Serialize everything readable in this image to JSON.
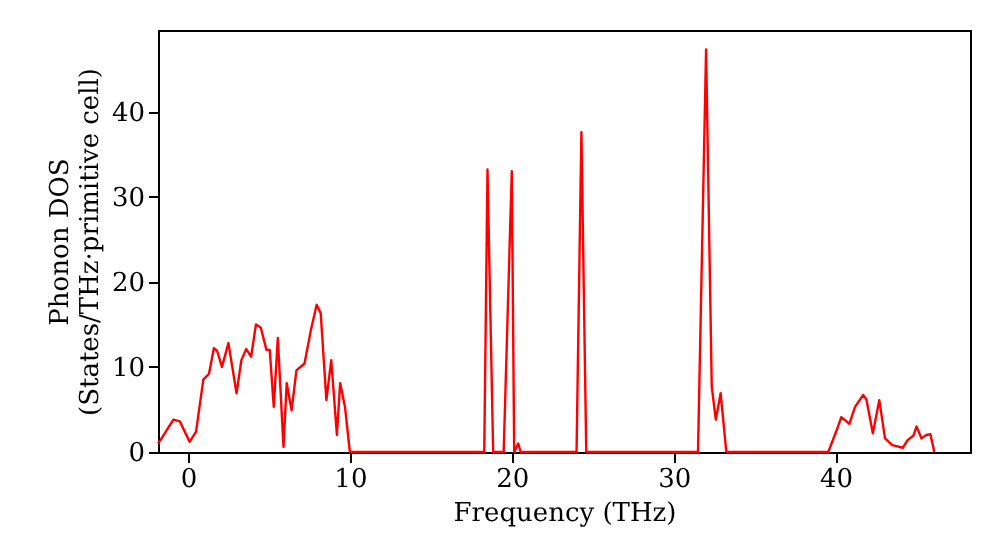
{
  "chart_data": {
    "type": "line",
    "xlabel": "Frequency (THz)",
    "ylabel": "Phonon DOS\n(States/THz·primitive cell)",
    "xlim": [
      -1.85,
      48.3
    ],
    "ylim": [
      0,
      49.6
    ],
    "xticks": [
      0,
      10,
      20,
      30,
      40
    ],
    "yticks": [
      0,
      10,
      20,
      30,
      40
    ],
    "grid": false,
    "marker": "none",
    "line_style": "solid",
    "series": [
      {
        "color": "#ff0000",
        "x": [
          -1.85,
          -1.7,
          -0.9,
          -0.5,
          0.1,
          0.5,
          0.95,
          1.3,
          1.6,
          1.8,
          2.1,
          2.5,
          3.0,
          3.3,
          3.6,
          3.9,
          4.2,
          4.5,
          4.85,
          5.05,
          5.3,
          5.55,
          5.9,
          6.1,
          6.4,
          6.7,
          7.2,
          7.6,
          7.95,
          8.2,
          8.55,
          8.85,
          9.2,
          9.4,
          9.7,
          10.0,
          18.3,
          18.5,
          18.85,
          19.5,
          20.0,
          20.15,
          20.4,
          20.55,
          24.0,
          24.3,
          24.6,
          31.5,
          32.0,
          32.35,
          32.6,
          32.9,
          33.25,
          39.55,
          40.15,
          40.35,
          40.85,
          41.2,
          41.7,
          41.9,
          42.3,
          42.7,
          43.05,
          43.5,
          44.15,
          44.45,
          44.8,
          45.0,
          45.3,
          45.6,
          45.85,
          46.1
        ],
        "values": [
          1.0,
          1.4,
          3.8,
          3.6,
          1.2,
          2.4,
          8.5,
          9.2,
          12.2,
          11.9,
          10.0,
          12.8,
          6.9,
          10.8,
          12.1,
          11.2,
          15.0,
          14.6,
          12.0,
          12.0,
          5.3,
          13.4,
          0.6,
          8.1,
          4.9,
          9.6,
          10.4,
          14.4,
          17.3,
          16.3,
          6.1,
          10.8,
          2.0,
          8.1,
          5.3,
          0,
          0,
          33.2,
          0,
          0,
          33,
          0,
          1.0,
          0,
          0,
          37.6,
          0,
          0,
          47.3,
          7.7,
          3.8,
          6.9,
          0,
          0,
          3.0,
          4.1,
          3.3,
          5.3,
          6.7,
          6.2,
          2.2,
          6.1,
          1.6,
          0.8,
          0.5,
          1.4,
          1.9,
          3.0,
          1.6,
          2.0,
          2.1,
          0
        ]
      }
    ]
  }
}
